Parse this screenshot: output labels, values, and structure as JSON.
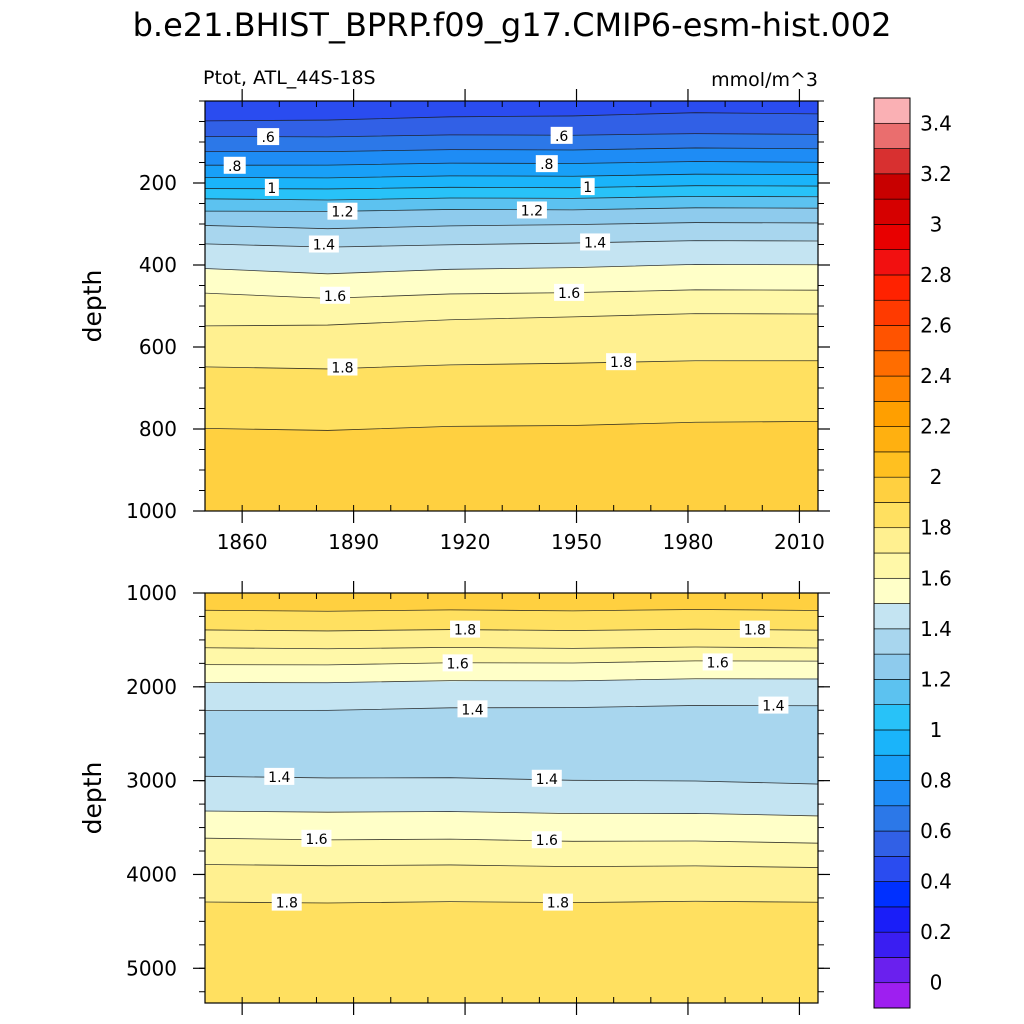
{
  "title": "b.e21.BHIST_BPRP.f09_g17.CMIP6-esm-hist.002",
  "subtitle_left": "Ptot, ATL_44S-18S",
  "subtitle_right": "mmol/m^3",
  "chart_data": [
    {
      "type": "contour",
      "panel": "upper",
      "xlabel": "",
      "ylabel": "depth",
      "xlim": [
        1850,
        2015
      ],
      "ylim": [
        1000,
        0
      ],
      "x_ticks": [
        1860,
        1890,
        1920,
        1950,
        1980,
        2010
      ],
      "y_ticks": [
        200,
        400,
        600,
        800,
        1000
      ],
      "contour_interval": 0.1,
      "isolines": [
        {
          "level": 0.5,
          "depth": [
            50,
            45,
            40,
            35,
            30,
            30
          ]
        },
        {
          "level": 0.6,
          "depth": [
            88,
            86,
            84,
            82,
            81,
            80
          ]
        },
        {
          "level": 0.7,
          "depth": [
            125,
            122,
            120,
            118,
            116,
            115
          ]
        },
        {
          "level": 0.8,
          "depth": [
            158,
            155,
            153,
            151,
            149,
            148
          ]
        },
        {
          "level": 0.9,
          "depth": [
            188,
            186,
            184,
            182,
            180,
            178
          ]
        },
        {
          "level": 1.0,
          "depth": [
            215,
            213,
            212,
            210,
            208,
            206
          ]
        },
        {
          "level": 1.1,
          "depth": [
            240,
            240,
            238,
            236,
            234,
            232
          ]
        },
        {
          "level": 1.2,
          "depth": [
            270,
            268,
            266,
            264,
            262,
            260
          ]
        },
        {
          "level": 1.3,
          "depth": [
            305,
            310,
            306,
            300,
            298,
            296
          ]
        },
        {
          "level": 1.4,
          "depth": [
            350,
            355,
            352,
            345,
            342,
            340
          ]
        },
        {
          "level": 1.5,
          "depth": [
            410,
            420,
            412,
            405,
            400,
            398
          ]
        },
        {
          "level": 1.6,
          "depth": [
            470,
            480,
            472,
            466,
            462,
            460
          ]
        },
        {
          "level": 1.7,
          "depth": [
            550,
            545,
            535,
            525,
            520,
            518
          ]
        },
        {
          "level": 1.8,
          "depth": [
            650,
            652,
            645,
            638,
            635,
            632
          ]
        },
        {
          "level": 1.9,
          "depth": [
            800,
            802,
            795,
            790,
            785,
            780
          ]
        }
      ],
      "contour_labels": [
        {
          "text": ".6",
          "x": 1867,
          "y": 88
        },
        {
          "text": ".6",
          "x": 1946,
          "y": 85
        },
        {
          "text": ".8",
          "x": 1858,
          "y": 158
        },
        {
          "text": ".8",
          "x": 1942,
          "y": 154
        },
        {
          "text": "1",
          "x": 1868,
          "y": 212
        },
        {
          "text": "1",
          "x": 1953,
          "y": 210
        },
        {
          "text": "1.2",
          "x": 1887,
          "y": 270
        },
        {
          "text": "1.2",
          "x": 1938,
          "y": 267
        },
        {
          "text": "1.4",
          "x": 1882,
          "y": 350
        },
        {
          "text": "1.4",
          "x": 1955,
          "y": 345
        },
        {
          "text": "1.6",
          "x": 1885,
          "y": 475
        },
        {
          "text": "1.6",
          "x": 1948,
          "y": 468
        },
        {
          "text": "1.8",
          "x": 1887,
          "y": 650
        },
        {
          "text": "1.8",
          "x": 1962,
          "y": 637
        }
      ]
    },
    {
      "type": "contour",
      "panel": "lower",
      "xlabel": "",
      "ylabel": "depth",
      "xlim": [
        1850,
        2015
      ],
      "ylim": [
        5370,
        1000
      ],
      "y_ticks": [
        1000,
        2000,
        3000,
        4000,
        5000
      ],
      "contour_interval": 0.1,
      "isolines": [
        {
          "level": 1.9,
          "depth": [
            1190,
            1188,
            1186,
            1184,
            1182,
            1180
          ]
        },
        {
          "level": 1.8,
          "depth": [
            1400,
            1398,
            1396,
            1394,
            1392,
            1390
          ]
        },
        {
          "level": 1.7,
          "depth": [
            1590,
            1588,
            1586,
            1584,
            1582,
            1580
          ]
        },
        {
          "level": 1.6,
          "depth": [
            1770,
            1760,
            1750,
            1740,
            1730,
            1720
          ]
        },
        {
          "level": 1.5,
          "depth": [
            1960,
            1950,
            1940,
            1930,
            1920,
            1910
          ]
        },
        {
          "level": 1.4,
          "depth": [
            2260,
            2245,
            2230,
            2215,
            2205,
            2195
          ]
        },
        {
          "level": 1.4,
          "depth": [
            2960,
            2965,
            2975,
            2990,
            3010,
            3030
          ]
        },
        {
          "level": 1.5,
          "depth": [
            3330,
            3330,
            3335,
            3345,
            3355,
            3370
          ]
        },
        {
          "level": 1.6,
          "depth": [
            3620,
            3625,
            3630,
            3640,
            3650,
            3660
          ]
        },
        {
          "level": 1.7,
          "depth": [
            3900,
            3900,
            3905,
            3910,
            3915,
            3920
          ]
        },
        {
          "level": 1.8,
          "depth": [
            4300,
            4298,
            4296,
            4294,
            4292,
            4290
          ]
        }
      ],
      "contour_labels": [
        {
          "text": "1.8",
          "x": 1920,
          "y": 1390
        },
        {
          "text": "1.8",
          "x": 1998,
          "y": 1390
        },
        {
          "text": "1.6",
          "x": 1918,
          "y": 1750
        },
        {
          "text": "1.6",
          "x": 1988,
          "y": 1740
        },
        {
          "text": "1.4",
          "x": 1922,
          "y": 2240
        },
        {
          "text": "1.4",
          "x": 2003,
          "y": 2200
        },
        {
          "text": "1.4",
          "x": 1870,
          "y": 2960
        },
        {
          "text": "1.4",
          "x": 1942,
          "y": 2980
        },
        {
          "text": "1.6",
          "x": 1880,
          "y": 3620
        },
        {
          "text": "1.6",
          "x": 1942,
          "y": 3635
        },
        {
          "text": "1.8",
          "x": 1872,
          "y": 4300
        },
        {
          "text": "1.8",
          "x": 1945,
          "y": 4300
        }
      ]
    }
  ],
  "colorbar": {
    "labels": [
      "3.4",
      "3.2",
      "3",
      "2.8",
      "2.6",
      "2.4",
      "2.2",
      "2",
      "1.8",
      "1.6",
      "1.4",
      "1.2",
      "1",
      "0.8",
      "0.6",
      "0.4",
      "0.2",
      "0"
    ],
    "colors": [
      "#9e1ff0",
      "#6a20ee",
      "#3a1ef2",
      "#1a1ef8",
      "#0030ff",
      "#2a4cf0",
      "#3160e6",
      "#2c78e8",
      "#1e8cf5",
      "#18a0f8",
      "#1ab4fa",
      "#28c2f8",
      "#5cc2f0",
      "#8ecbed",
      "#a8d6ee",
      "#c4e4f2",
      "#ffffc8",
      "#fff8a8",
      "#fff090",
      "#ffe060",
      "#ffd040",
      "#ffc020",
      "#ffb010",
      "#ff9f00",
      "#ff8400",
      "#ff6d00",
      "#ff5300",
      "#ff3a00",
      "#ff2200",
      "#f21010",
      "#e80000",
      "#d60000",
      "#c80000",
      "#d83030",
      "#ea6e6e",
      "#fab0b4"
    ]
  }
}
